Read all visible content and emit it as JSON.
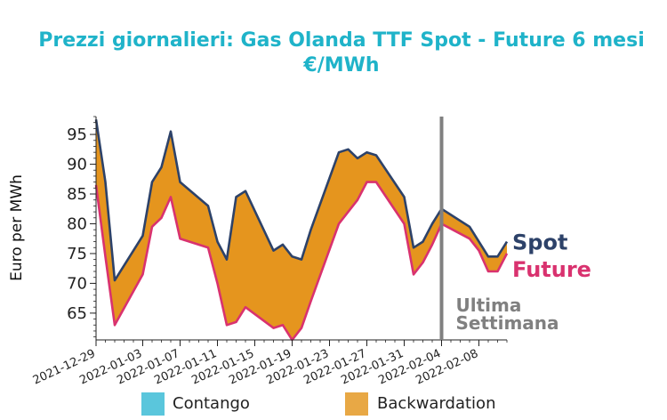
{
  "chart_data": {
    "type": "line",
    "title": "Prezzi giornalieri: Gas Olanda TTF Spot - Future 6 mesi",
    "subtitle": "€/MWh",
    "xlabel": "",
    "ylabel": "Euro per MWh",
    "x": [
      "2021-12-29",
      "2021-12-30",
      "2021-12-31",
      "2022-01-03",
      "2022-01-04",
      "2022-01-05",
      "2022-01-06",
      "2022-01-07",
      "2022-01-10",
      "2022-01-11",
      "2022-01-12",
      "2022-01-13",
      "2022-01-14",
      "2022-01-17",
      "2022-01-18",
      "2022-01-19",
      "2022-01-20",
      "2022-01-21",
      "2022-01-24",
      "2022-01-25",
      "2022-01-26",
      "2022-01-27",
      "2022-01-28",
      "2022-01-31",
      "2022-02-01",
      "2022-02-02",
      "2022-02-03",
      "2022-02-04",
      "2022-02-07",
      "2022-02-08",
      "2022-02-09",
      "2022-02-10",
      "2022-02-11"
    ],
    "series": [
      {
        "name": "Spot",
        "color": "#2d4269",
        "values": [
          97.5,
          87.0,
          70.5,
          78.0,
          87.0,
          89.5,
          95.5,
          87.0,
          83.0,
          77.0,
          74.0,
          84.5,
          85.5,
          75.5,
          76.5,
          74.5,
          74.0,
          79.0,
          92.0,
          92.5,
          91.0,
          92.0,
          91.5,
          84.5,
          76.0,
          77.0,
          80.0,
          82.5,
          79.5,
          77.0,
          74.5,
          74.5,
          77.0
        ]
      },
      {
        "name": "Future",
        "color": "#d9326f",
        "values": [
          86.5,
          74.5,
          63.0,
          71.5,
          79.5,
          81.0,
          84.5,
          77.5,
          76.0,
          70.0,
          63.0,
          63.5,
          66.0,
          62.5,
          63.0,
          60.5,
          62.5,
          67.0,
          80.0,
          82.0,
          84.0,
          87.0,
          87.0,
          80.0,
          71.5,
          73.5,
          76.5,
          80.0,
          77.5,
          75.5,
          72.0,
          72.0,
          75.0
        ]
      }
    ],
    "x_ticks": [
      "2021-12-29",
      "2022-01-03",
      "2022-01-07",
      "2022-01-11",
      "2022-01-15",
      "2022-01-19",
      "2022-01-23",
      "2022-01-27",
      "2022-01-31",
      "2022-02-04",
      "2022-02-08"
    ],
    "y_ticks": [
      65,
      70,
      75,
      80,
      85,
      90,
      95
    ],
    "ylim": [
      60.5,
      98
    ],
    "xlim": [
      "2021-12-29",
      "2022-02-11"
    ],
    "annotation": {
      "date": "2022-02-04",
      "line1": "Ultima",
      "line2": "Settimana",
      "color": "#808080"
    },
    "fills": {
      "contango_color": "#5ac6dc",
      "backwardation_color": "#e5951e"
    },
    "grid": false
  },
  "legend": {
    "items": [
      {
        "label": "Contango",
        "color": "#5ac6dc"
      },
      {
        "label": "Backwardation",
        "color": "#e8a845"
      }
    ],
    "position": "bottom"
  }
}
